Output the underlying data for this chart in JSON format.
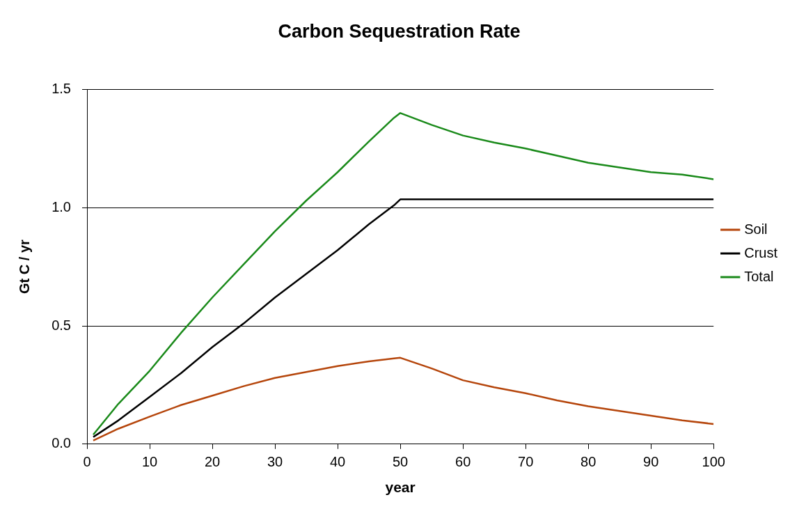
{
  "chart_data": {
    "type": "line",
    "title": "Carbon Sequestration Rate",
    "xlabel": "year",
    "ylabel": "Gt C / yr",
    "xlim": [
      0,
      100
    ],
    "xticks": [
      0,
      10,
      20,
      30,
      40,
      50,
      60,
      70,
      80,
      90,
      100
    ],
    "ylim": [
      0,
      1.5
    ],
    "yticks": [
      {
        "value": 0,
        "label": "0.0"
      },
      {
        "value": 0.5,
        "label": "0.5"
      },
      {
        "value": 1,
        "label": "1.0"
      },
      {
        "value": 1.5,
        "label": "1.5"
      }
    ],
    "grid": "y",
    "legend": "right",
    "marker": "none",
    "line_style": "solid",
    "x": [
      1,
      5,
      10,
      15,
      20,
      25,
      30,
      35,
      40,
      45,
      49,
      50,
      55,
      60,
      65,
      70,
      75,
      80,
      85,
      90,
      95,
      100
    ],
    "series": [
      {
        "name": "Soil",
        "color": "#b5450b",
        "values": [
          0.015,
          0.065,
          0.116,
          0.165,
          0.205,
          0.245,
          0.28,
          0.305,
          0.33,
          0.35,
          0.362,
          0.365,
          0.32,
          0.27,
          0.24,
          0.215,
          0.185,
          0.16,
          0.14,
          0.12,
          0.1,
          0.085
        ]
      },
      {
        "name": "Crust",
        "color": "#000000",
        "values": [
          0.03,
          0.1,
          0.2,
          0.3,
          0.41,
          0.51,
          0.62,
          0.72,
          0.82,
          0.93,
          1.01,
          1.035,
          1.035,
          1.035,
          1.035,
          1.035,
          1.035,
          1.035,
          1.035,
          1.035,
          1.035,
          1.035
        ]
      },
      {
        "name": "Total",
        "color": "#1a8a1a",
        "values": [
          0.04,
          0.17,
          0.31,
          0.47,
          0.62,
          0.76,
          0.9,
          1.03,
          1.15,
          1.28,
          1.38,
          1.4,
          1.35,
          1.305,
          1.275,
          1.25,
          1.22,
          1.19,
          1.17,
          1.15,
          1.14,
          1.12
        ]
      }
    ]
  }
}
